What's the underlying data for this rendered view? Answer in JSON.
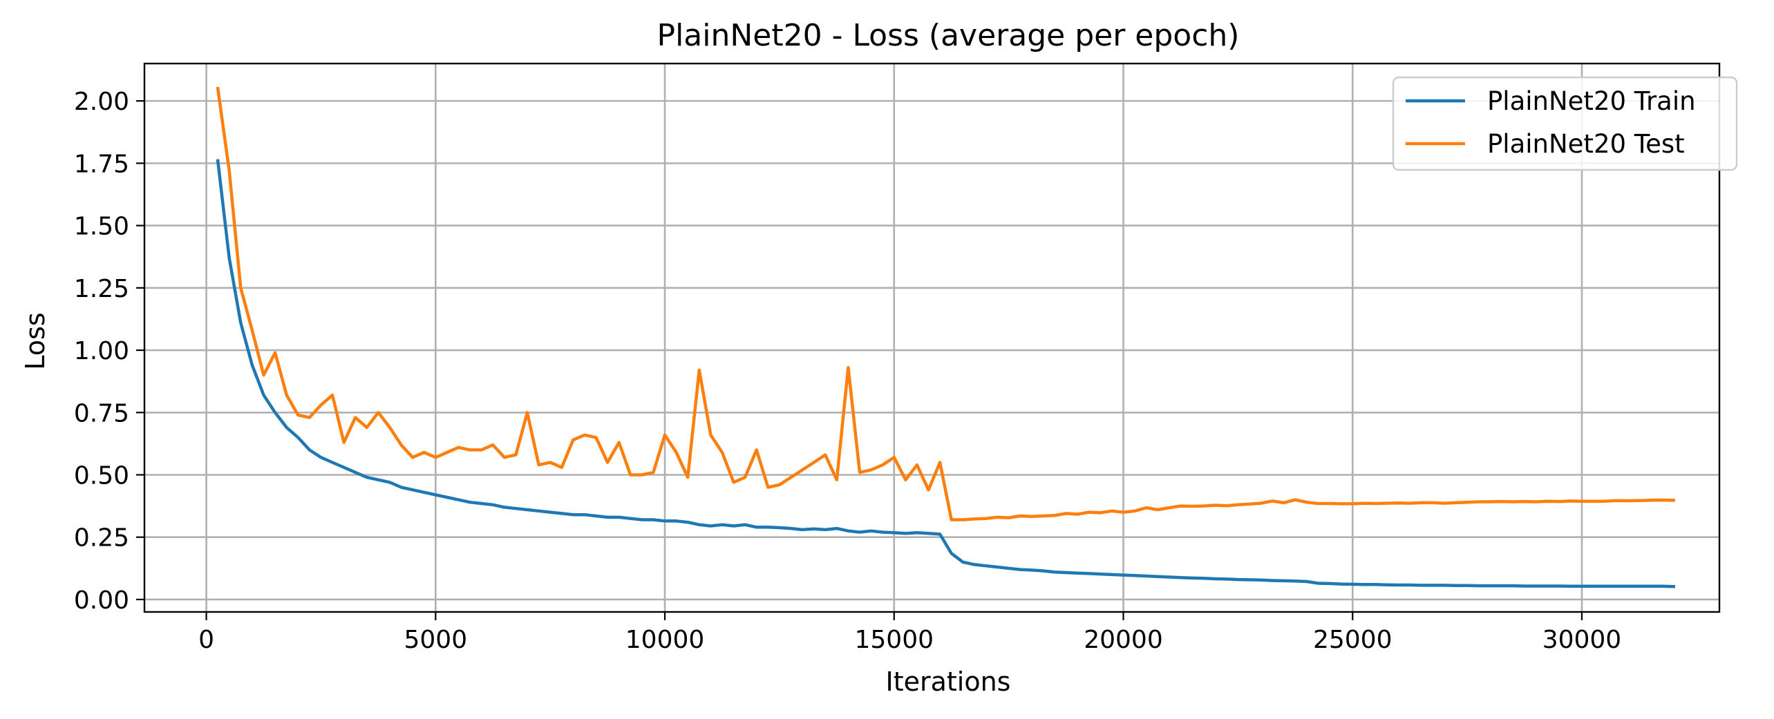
{
  "chart_data": {
    "type": "line",
    "title": "PlainNet20 - Loss (average per epoch)",
    "xlabel": "Iterations",
    "ylabel": "Loss",
    "xlim": [
      -1350,
      33000
    ],
    "ylim": [
      -0.05,
      2.15
    ],
    "xticks": [
      0,
      5000,
      10000,
      15000,
      20000,
      25000,
      30000
    ],
    "xtick_labels": [
      "0",
      "5000",
      "10000",
      "15000",
      "20000",
      "25000",
      "30000"
    ],
    "yticks": [
      0.0,
      0.25,
      0.5,
      0.75,
      1.0,
      1.25,
      1.5,
      1.75,
      2.0
    ],
    "ytick_labels": [
      "0.00",
      "0.25",
      "0.50",
      "0.75",
      "1.00",
      "1.25",
      "1.50",
      "1.75",
      "2.00"
    ],
    "grid": true,
    "legend_position": "top-right",
    "series": [
      {
        "name": "PlainNet20 Train",
        "color": "#1f77b4",
        "x": [
          250,
          500,
          750,
          1000,
          1250,
          1500,
          1750,
          2000,
          2250,
          2500,
          2750,
          3000,
          3250,
          3500,
          3750,
          4000,
          4250,
          4500,
          4750,
          5000,
          5250,
          5500,
          5750,
          6000,
          6250,
          6500,
          6750,
          7000,
          7250,
          7500,
          7750,
          8000,
          8250,
          8500,
          8750,
          9000,
          9250,
          9500,
          9750,
          10000,
          10250,
          10500,
          10750,
          11000,
          11250,
          11500,
          11750,
          12000,
          12250,
          12500,
          12750,
          13000,
          13250,
          13500,
          13750,
          14000,
          14250,
          14500,
          14750,
          15000,
          15250,
          15500,
          15750,
          16000,
          16250,
          16500,
          16750,
          17000,
          17250,
          17500,
          17750,
          18000,
          18250,
          18500,
          18750,
          19000,
          19250,
          19500,
          19750,
          20000,
          20250,
          20500,
          20750,
          21000,
          21250,
          21500,
          21750,
          22000,
          22250,
          22500,
          22750,
          23000,
          23250,
          23500,
          23750,
          24000,
          24250,
          24500,
          24750,
          25000,
          25250,
          25500,
          25750,
          26000,
          26250,
          26500,
          26750,
          27000,
          27250,
          27500,
          27750,
          28000,
          28250,
          28500,
          28750,
          29000,
          29250,
          29500,
          29750,
          30000,
          30250,
          30500,
          30750,
          31000,
          31250,
          31500,
          31750,
          32000
        ],
        "values": [
          1.76,
          1.37,
          1.11,
          0.94,
          0.82,
          0.75,
          0.69,
          0.65,
          0.6,
          0.57,
          0.55,
          0.53,
          0.51,
          0.49,
          0.48,
          0.47,
          0.45,
          0.44,
          0.43,
          0.42,
          0.41,
          0.4,
          0.39,
          0.385,
          0.38,
          0.37,
          0.365,
          0.36,
          0.355,
          0.35,
          0.345,
          0.34,
          0.34,
          0.335,
          0.33,
          0.33,
          0.325,
          0.32,
          0.32,
          0.315,
          0.315,
          0.31,
          0.3,
          0.295,
          0.3,
          0.295,
          0.3,
          0.29,
          0.29,
          0.288,
          0.285,
          0.28,
          0.283,
          0.28,
          0.285,
          0.275,
          0.27,
          0.275,
          0.27,
          0.268,
          0.265,
          0.268,
          0.265,
          0.262,
          0.185,
          0.15,
          0.14,
          0.135,
          0.13,
          0.125,
          0.12,
          0.118,
          0.115,
          0.11,
          0.108,
          0.106,
          0.104,
          0.102,
          0.1,
          0.098,
          0.096,
          0.094,
          0.092,
          0.09,
          0.088,
          0.086,
          0.085,
          0.083,
          0.082,
          0.08,
          0.079,
          0.078,
          0.076,
          0.075,
          0.074,
          0.072,
          0.065,
          0.064,
          0.062,
          0.061,
          0.06,
          0.06,
          0.059,
          0.058,
          0.058,
          0.057,
          0.057,
          0.057,
          0.056,
          0.056,
          0.055,
          0.055,
          0.055,
          0.055,
          0.054,
          0.054,
          0.054,
          0.054,
          0.053,
          0.053,
          0.053,
          0.053,
          0.053,
          0.053,
          0.053,
          0.053,
          0.053,
          0.052
        ]
      },
      {
        "name": "PlainNet20 Test",
        "color": "#ff7f0e",
        "x": [
          250,
          500,
          750,
          1000,
          1250,
          1500,
          1750,
          2000,
          2250,
          2500,
          2750,
          3000,
          3250,
          3500,
          3750,
          4000,
          4250,
          4500,
          4750,
          5000,
          5250,
          5500,
          5750,
          6000,
          6250,
          6500,
          6750,
          7000,
          7250,
          7500,
          7750,
          8000,
          8250,
          8500,
          8750,
          9000,
          9250,
          9500,
          9750,
          10000,
          10250,
          10500,
          10750,
          11000,
          11250,
          11500,
          11750,
          12000,
          12250,
          12500,
          12750,
          13000,
          13250,
          13500,
          13750,
          14000,
          14250,
          14500,
          14750,
          15000,
          15250,
          15500,
          15750,
          16000,
          16250,
          16500,
          16750,
          17000,
          17250,
          17500,
          17750,
          18000,
          18250,
          18500,
          18750,
          19000,
          19250,
          19500,
          19750,
          20000,
          20250,
          20500,
          20750,
          21000,
          21250,
          21500,
          21750,
          22000,
          22250,
          22500,
          22750,
          23000,
          23250,
          23500,
          23750,
          24000,
          24250,
          24500,
          24750,
          25000,
          25250,
          25500,
          25750,
          26000,
          26250,
          26500,
          26750,
          27000,
          27250,
          27500,
          27750,
          28000,
          28250,
          28500,
          28750,
          29000,
          29250,
          29500,
          29750,
          30000,
          30250,
          30500,
          30750,
          31000,
          31250,
          31500,
          31750,
          32000
        ],
        "values": [
          2.05,
          1.72,
          1.25,
          1.08,
          0.9,
          0.99,
          0.82,
          0.74,
          0.73,
          0.78,
          0.82,
          0.63,
          0.73,
          0.69,
          0.75,
          0.69,
          0.62,
          0.57,
          0.59,
          0.57,
          0.59,
          0.61,
          0.6,
          0.6,
          0.62,
          0.57,
          0.58,
          0.75,
          0.54,
          0.55,
          0.53,
          0.64,
          0.66,
          0.65,
          0.55,
          0.63,
          0.5,
          0.5,
          0.51,
          0.66,
          0.59,
          0.49,
          0.92,
          0.66,
          0.59,
          0.47,
          0.49,
          0.6,
          0.45,
          0.46,
          0.49,
          0.52,
          0.55,
          0.58,
          0.48,
          0.93,
          0.51,
          0.52,
          0.54,
          0.57,
          0.48,
          0.54,
          0.44,
          0.55,
          0.32,
          0.32,
          0.323,
          0.325,
          0.33,
          0.328,
          0.335,
          0.333,
          0.335,
          0.337,
          0.345,
          0.342,
          0.35,
          0.348,
          0.355,
          0.35,
          0.355,
          0.368,
          0.36,
          0.368,
          0.375,
          0.374,
          0.375,
          0.378,
          0.376,
          0.38,
          0.383,
          0.386,
          0.395,
          0.388,
          0.4,
          0.39,
          0.385,
          0.385,
          0.384,
          0.384,
          0.386,
          0.385,
          0.386,
          0.387,
          0.386,
          0.388,
          0.388,
          0.386,
          0.388,
          0.39,
          0.392,
          0.392,
          0.393,
          0.392,
          0.393,
          0.392,
          0.394,
          0.393,
          0.395,
          0.394,
          0.394,
          0.394,
          0.397,
          0.396,
          0.397,
          0.398,
          0.399,
          0.398
        ]
      }
    ]
  }
}
